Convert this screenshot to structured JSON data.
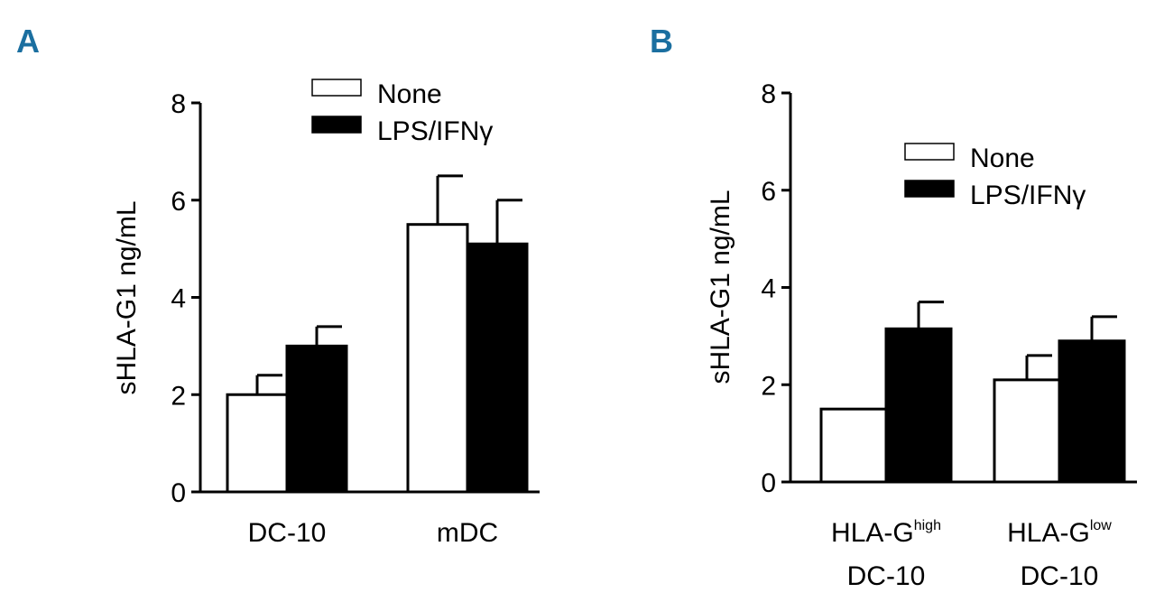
{
  "chart_data": [
    {
      "panel": "A",
      "type": "bar",
      "ylabel": "sHLA-G1 ng/mL",
      "ylim": [
        0,
        8
      ],
      "yticks": [
        0,
        2,
        4,
        6,
        8
      ],
      "categories": [
        {
          "line1": "DC-10",
          "line1_sup": "",
          "line2": ""
        },
        {
          "line1": "mDC",
          "line1_sup": "",
          "line2": ""
        }
      ],
      "series": [
        {
          "name": "None",
          "color": "#ffffff",
          "values": [
            2.0,
            5.5
          ],
          "errors": [
            0.4,
            1.0
          ]
        },
        {
          "name": "LPS/IFNγ",
          "color": "#000000",
          "values": [
            3.0,
            5.1
          ],
          "errors": [
            0.4,
            0.9
          ]
        }
      ],
      "legend_position": "top-center"
    },
    {
      "panel": "B",
      "type": "bar",
      "ylabel": "sHLA-G1 ng/mL",
      "ylim": [
        0,
        8
      ],
      "yticks": [
        0,
        2,
        4,
        6,
        8
      ],
      "categories": [
        {
          "line1": "HLA-G",
          "line1_sup": "high",
          "line2": "DC-10"
        },
        {
          "line1": "HLA-G",
          "line1_sup": "low",
          "line2": "DC-10"
        }
      ],
      "series": [
        {
          "name": "None",
          "color": "#ffffff",
          "values": [
            1.5,
            2.1
          ],
          "errors": [
            0.0,
            0.5
          ]
        },
        {
          "name": "LPS/IFNγ",
          "color": "#000000",
          "values": [
            3.15,
            2.9
          ],
          "errors": [
            0.55,
            0.5
          ]
        }
      ],
      "legend_position": "top-right"
    }
  ]
}
